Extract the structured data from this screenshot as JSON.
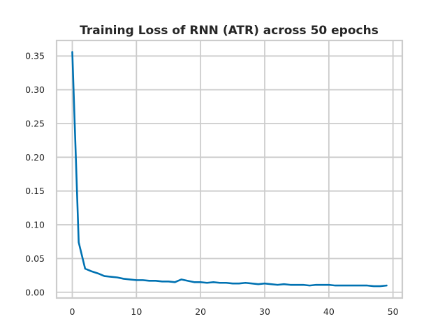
{
  "chart_data": {
    "type": "line",
    "title": "Training Loss of RNN (ATR) across 50 epochs",
    "xlabel": "",
    "ylabel": "",
    "xlim": [
      -2.45,
      51.45
    ],
    "ylim": [
      -0.0085,
      0.373
    ],
    "x_ticks": [
      0,
      10,
      20,
      30,
      40,
      50
    ],
    "y_ticks": [
      0.0,
      0.05,
      0.1,
      0.15,
      0.2,
      0.25,
      0.3,
      0.35
    ],
    "y_tick_labels": [
      "0.00",
      "0.05",
      "0.10",
      "0.15",
      "0.20",
      "0.25",
      "0.30",
      "0.35"
    ],
    "grid": true,
    "color": "#0072b2",
    "series": [
      {
        "x": [
          0,
          1,
          2,
          3,
          4,
          5,
          6,
          7,
          8,
          9,
          10,
          11,
          12,
          13,
          14,
          15,
          16,
          17,
          18,
          19,
          20,
          21,
          22,
          23,
          24,
          25,
          26,
          27,
          28,
          29,
          30,
          31,
          32,
          33,
          34,
          35,
          36,
          37,
          38,
          39,
          40,
          41,
          42,
          43,
          44,
          45,
          46,
          47,
          48,
          49
        ],
        "values": [
          0.356,
          0.074,
          0.035,
          0.031,
          0.028,
          0.024,
          0.023,
          0.022,
          0.02,
          0.019,
          0.018,
          0.018,
          0.017,
          0.017,
          0.016,
          0.016,
          0.015,
          0.019,
          0.017,
          0.015,
          0.015,
          0.014,
          0.015,
          0.014,
          0.014,
          0.013,
          0.013,
          0.014,
          0.013,
          0.012,
          0.013,
          0.012,
          0.011,
          0.012,
          0.011,
          0.011,
          0.011,
          0.01,
          0.011,
          0.011,
          0.011,
          0.01,
          0.01,
          0.01,
          0.01,
          0.01,
          0.01,
          0.009,
          0.009,
          0.01
        ]
      }
    ]
  }
}
